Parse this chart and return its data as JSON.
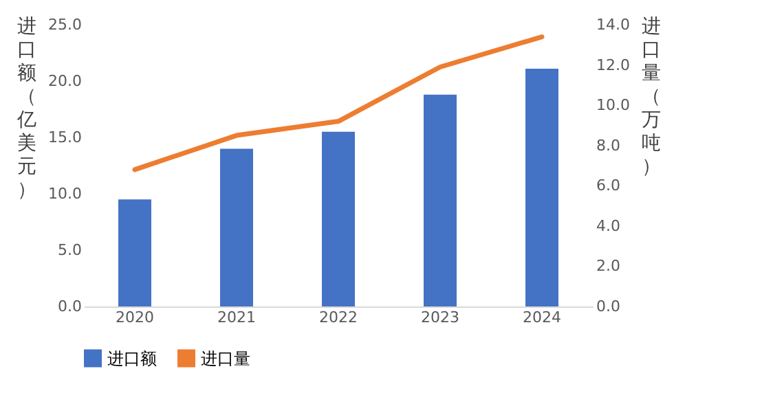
{
  "chart_data": {
    "type": "bar",
    "categories": [
      "2020",
      "2021",
      "2022",
      "2023",
      "2024"
    ],
    "ylabel": "进口额（亿美元）",
    "y2label": "进口量（万吨）",
    "series": [
      {
        "name": "进口额",
        "color": "#4472c4",
        "values": [
          9.5,
          14.0,
          15.5,
          18.8,
          21.1
        ]
      },
      {
        "name": "进口量",
        "type": "line",
        "axis": "y2",
        "color": "#ed7d31",
        "values": [
          6.8,
          8.5,
          9.2,
          11.9,
          13.4
        ]
      }
    ],
    "ylim": [
      0,
      25
    ],
    "yticks": [
      {
        "value": 0,
        "label": "0.0"
      },
      {
        "value": 5,
        "label": "5.0"
      },
      {
        "value": 10,
        "label": "10.0"
      },
      {
        "value": 15,
        "label": "15.0"
      },
      {
        "value": 20,
        "label": "20.0"
      },
      {
        "value": 25,
        "label": "25.0"
      }
    ],
    "y2lim": [
      0,
      14
    ],
    "y2ticks": [
      {
        "value": 0,
        "label": "0.0"
      },
      {
        "value": 2,
        "label": "2.0"
      },
      {
        "value": 4,
        "label": "4.0"
      },
      {
        "value": 6,
        "label": "6.0"
      },
      {
        "value": 8,
        "label": "8.0"
      },
      {
        "value": 10,
        "label": "10.0"
      },
      {
        "value": 12,
        "label": "12.0"
      },
      {
        "value": 14,
        "label": "14.0"
      }
    ],
    "grid": false,
    "legend": "bottom"
  }
}
